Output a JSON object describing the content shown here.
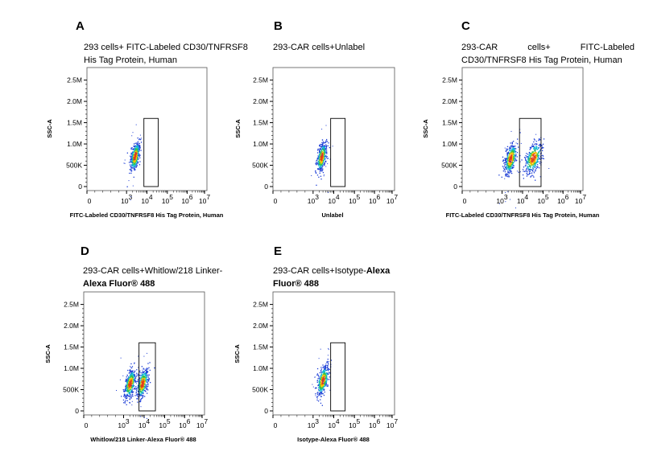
{
  "chart_data": [
    {
      "type": "scatter",
      "panel": "A",
      "title_parts": [
        "293 cells+ FITC-Labeled CD30/TNFRSF8 His Tag Protein, Human"
      ],
      "xlabel": "FITC-Labeled CD30/TNFRSF8 His Tag Protein, Human",
      "ylabel": "SSC-A",
      "x_scale": "biexponential",
      "x_ticks": [
        0,
        3,
        4,
        5,
        6,
        7
      ],
      "y_ticks": [
        "0",
        "500K",
        "1.0M",
        "1.5M",
        "2.0M",
        "2.5M"
      ],
      "ylim": [
        0,
        2700000
      ],
      "gate": {
        "x": [
          3.85,
          4.55
        ],
        "y": [
          0,
          1600000
        ]
      },
      "populations": [
        {
          "x_center": 3.4,
          "y_center": 720000,
          "x_spread": 0.1,
          "y_spread": 170000
        }
      ]
    },
    {
      "type": "scatter",
      "panel": "B",
      "title_parts": [
        "293-CAR cells+Unlabel"
      ],
      "xlabel": "Unlabel",
      "ylabel": "SSC-A",
      "x_scale": "biexponential",
      "x_ticks": [
        0,
        3,
        4,
        5,
        6,
        7
      ],
      "y_ticks": [
        "0",
        "500K",
        "1.0M",
        "1.5M",
        "2.0M",
        "2.5M"
      ],
      "ylim": [
        0,
        2700000
      ],
      "gate": {
        "x": [
          3.85,
          4.55
        ],
        "y": [
          0,
          1600000
        ]
      },
      "populations": [
        {
          "x_center": 3.4,
          "y_center": 700000,
          "x_spread": 0.1,
          "y_spread": 170000
        }
      ]
    },
    {
      "type": "scatter",
      "panel": "C",
      "title_parts": [
        "293-CAR cells+ FITC-Labeled CD30/TNFRSF8 His Tag Protein, Human"
      ],
      "xlabel": "FITC-Labeled CD30/TNFRSF8 His Tag Protein, Human",
      "ylabel": "SSC-A",
      "x_scale": "biexponential",
      "x_ticks": [
        0,
        3,
        4,
        5,
        6,
        7
      ],
      "y_ticks": [
        "0",
        "500K",
        "1.0M",
        "1.5M",
        "2.0M",
        "2.5M"
      ],
      "ylim": [
        0,
        2700000
      ],
      "gate": {
        "x": [
          3.85,
          4.9
        ],
        "y": [
          0,
          1600000
        ]
      },
      "populations": [
        {
          "x_center": 3.4,
          "y_center": 660000,
          "x_spread": 0.13,
          "y_spread": 180000
        },
        {
          "x_center": 4.5,
          "y_center": 680000,
          "x_spread": 0.18,
          "y_spread": 180000
        }
      ]
    },
    {
      "type": "scatter",
      "panel": "D",
      "title_parts": [
        "293-CAR cells+Whitlow/218 Linker-",
        "Alexa Fluor® 488"
      ],
      "xlabel": "Whitlow/218 Linker-Alexa Fluor® 488",
      "ylabel": "SSC-A",
      "x_scale": "biexponential",
      "x_ticks": [
        0,
        3,
        4,
        5,
        6,
        7
      ],
      "y_ticks": [
        "0",
        "500K",
        "1.0M",
        "1.5M",
        "2.0M",
        "2.5M"
      ],
      "ylim": [
        0,
        2700000
      ],
      "gate": {
        "x": [
          3.75,
          4.55
        ],
        "y": [
          0,
          1600000
        ]
      },
      "populations": [
        {
          "x_center": 3.3,
          "y_center": 650000,
          "x_spread": 0.12,
          "y_spread": 170000
        },
        {
          "x_center": 3.9,
          "y_center": 650000,
          "x_spread": 0.12,
          "y_spread": 170000
        }
      ]
    },
    {
      "type": "scatter",
      "panel": "E",
      "title_parts": [
        "293-CAR cells+Isotype-",
        "Alexa",
        "Fluor® 488"
      ],
      "xlabel": "Isotype-Alexa Fluor® 488",
      "ylabel": "SSC-A",
      "x_scale": "biexponential",
      "x_ticks": [
        0,
        3,
        4,
        5,
        6,
        7
      ],
      "y_ticks": [
        "0",
        "500K",
        "1.0M",
        "1.5M",
        "2.0M",
        "2.5M"
      ],
      "ylim": [
        0,
        2700000
      ],
      "gate": {
        "x": [
          3.85,
          4.55
        ],
        "y": [
          0,
          1600000
        ]
      },
      "populations": [
        {
          "x_center": 3.45,
          "y_center": 720000,
          "x_spread": 0.12,
          "y_spread": 170000
        }
      ]
    }
  ]
}
